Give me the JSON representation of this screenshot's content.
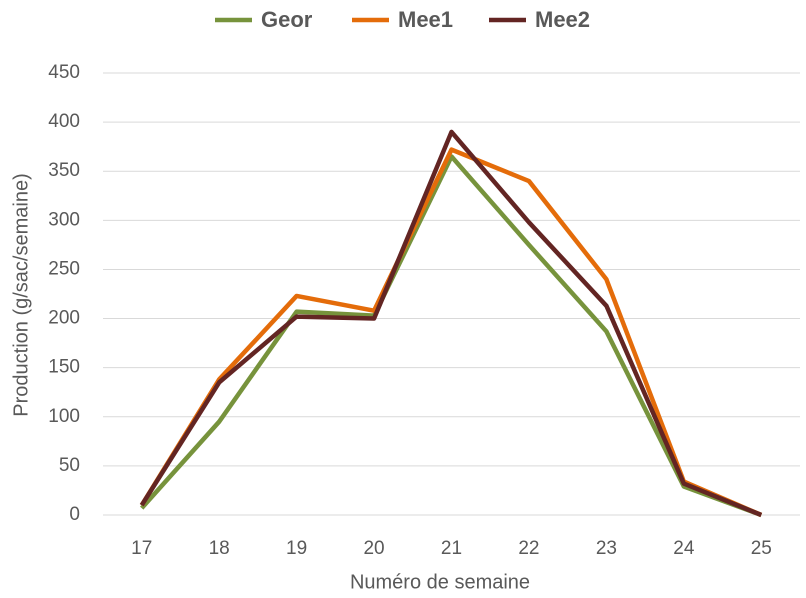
{
  "chart_data": {
    "type": "line",
    "x_label": "Numéro de semaine",
    "y_label": "Production (g/sac/semaine)",
    "categories": [
      "17",
      "18",
      "19",
      "20",
      "21",
      "22",
      "23",
      "24",
      "25"
    ],
    "series": [
      {
        "name": "Geor",
        "color": "#77933c",
        "values": [
          7,
          95,
          207,
          203,
          365,
          275,
          187,
          29,
          0
        ]
      },
      {
        "name": "Mee1",
        "color": "#e46c0a",
        "values": [
          10,
          138,
          223,
          208,
          372,
          340,
          240,
          34,
          0
        ]
      },
      {
        "name": "Mee2",
        "color": "#632523",
        "values": [
          10,
          135,
          202,
          200,
          390,
          298,
          213,
          32,
          0
        ]
      }
    ],
    "ylim": [
      0,
      450
    ],
    "yticks": [
      0,
      50,
      100,
      150,
      200,
      250,
      300,
      350,
      400,
      450
    ],
    "grid": true,
    "legend": "top"
  }
}
